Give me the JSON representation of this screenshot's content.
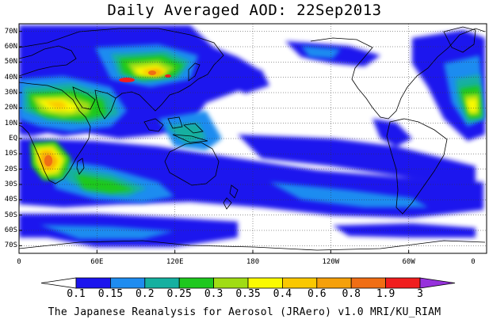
{
  "title": "Daily Averaged AOD: 22Sep2013",
  "credit": "The Japanese Reanalysis for Aerosol (JRAero) v1.0 MRI/KU_RIAM",
  "lat_labels": [
    "70N",
    "60N",
    "50N",
    "40N",
    "30N",
    "20N",
    "10N",
    "EQ",
    "10S",
    "20S",
    "30S",
    "40S",
    "50S",
    "60S",
    "70S"
  ],
  "lon_labels": [
    "0",
    "60E",
    "120E",
    "180",
    "120W",
    "60W",
    "0"
  ],
  "colorbar": {
    "labels": [
      "0.1",
      "0.15",
      "0.2",
      "0.25",
      "0.3",
      "0.35",
      "0.4",
      "0.6",
      "0.8",
      "1.9",
      "3"
    ],
    "colors": [
      "#ffffff",
      "#1b14ee",
      "#1e8cf0",
      "#15b0a0",
      "#1ec81e",
      "#a0dc14",
      "#fafa00",
      "#fac800",
      "#f5a00a",
      "#f06e14",
      "#f01e1e",
      "#9632dc"
    ]
  },
  "chart_data": {
    "type": "heatmap",
    "title": "Daily Averaged AOD: 22Sep2013",
    "variable": "AOD",
    "date": "22Sep2013",
    "lat_range": [
      -75,
      75
    ],
    "lon_range": [
      0,
      360
    ],
    "levels": [
      0.1,
      0.15,
      0.2,
      0.25,
      0.3,
      0.35,
      0.4,
      0.6,
      0.8,
      1.9,
      3
    ],
    "gridlines": "dotted"
  }
}
